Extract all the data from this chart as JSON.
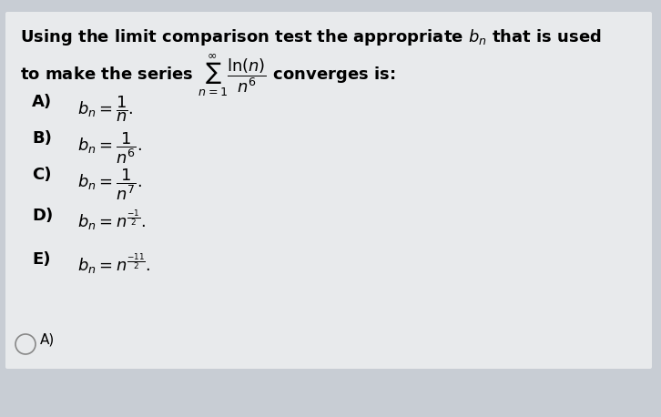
{
  "bg_color": "#c8cdd4",
  "card_color": "#e8eaec",
  "title_line1": "Using the limit comparison test the appropriate $b_n$ that is used",
  "title_line2": "to make the series $\\sum_{n=1}^{\\infty} \\dfrac{\\ln(n)}{n^6}$ converges is:",
  "options": [
    {
      "label": "A)",
      "expr": "$b_n = \\dfrac{1}{n}.$"
    },
    {
      "label": "B)",
      "expr": "$b_n = \\dfrac{1}{n^6}.$"
    },
    {
      "label": "C)",
      "expr": "$b_n = \\dfrac{1}{n^7}.$"
    },
    {
      "label": "D)",
      "expr": "$b_n = n^{\\frac{-1}{2}}.$"
    },
    {
      "label": "E)",
      "expr": "$b_n = n^{\\frac{-11}{2}}.$"
    }
  ],
  "answer_label": "A)",
  "title_fontsize": 13,
  "option_label_fontsize": 13,
  "option_expr_fontsize": 13,
  "answer_fontsize": 11
}
